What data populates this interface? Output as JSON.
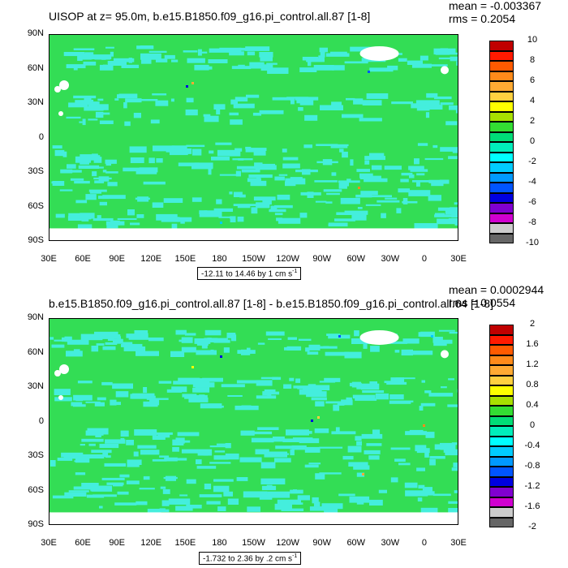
{
  "chart_data": [
    {
      "type": "heatmap",
      "title": "UISOP at z=  95.0m, b.e15.B1850.f09_g16.pi_control.all.87 [1-8]",
      "mean_text": "mean = -0.003367",
      "rms_text": "rms = 0.2054",
      "range_text": "-12.11 to 14.46 by 1 cm s",
      "range_unit_exp": "-1",
      "lat_ticks": [
        "90N",
        "60N",
        "30N",
        "0",
        "30S",
        "60S",
        "90S"
      ],
      "lon_ticks": [
        "30E",
        "60E",
        "90E",
        "120E",
        "150E",
        "180",
        "150W",
        "120W",
        "90W",
        "60W",
        "30W",
        "0",
        "30E"
      ],
      "colorbar_labels": [
        "10",
        "8",
        "6",
        "4",
        "2",
        "0",
        "-2",
        "-4",
        "-6",
        "-8",
        "-10"
      ],
      "colorbar_colors": [
        "#c00000",
        "#ff1a00",
        "#ff5a00",
        "#ff8a1a",
        "#ffaa33",
        "#ffd040",
        "#ffff00",
        "#a8e000",
        "#33dd33",
        "#00dd77",
        "#00eebb",
        "#00ffff",
        "#00ccff",
        "#0099ff",
        "#0055ff",
        "#0000e0",
        "#8000d0",
        "#d000d0",
        "#cccccc",
        "#666666"
      ],
      "dominant_color": "#33dd55",
      "secondary_color": "#44eedd"
    },
    {
      "type": "heatmap",
      "title": "b.e15.B1850.f09_g16.pi_control.all.87 [1-8] - b.e15.B1850.f09_g16.pi_control.all.64 [1-8]",
      "mean_text": "mean = 0.0002944",
      "rms_text": "rms = 0.0554",
      "range_text": "-1.732 to 2.36 by .2 cm s",
      "range_unit_exp": "-1",
      "lat_ticks": [
        "90N",
        "60N",
        "30N",
        "0",
        "30S",
        "60S",
        "90S"
      ],
      "lon_ticks": [
        "30E",
        "60E",
        "90E",
        "120E",
        "150E",
        "180",
        "150W",
        "120W",
        "90W",
        "60W",
        "30W",
        "0",
        "30E"
      ],
      "colorbar_labels": [
        "2",
        "1.6",
        "1.2",
        "0.8",
        "0.4",
        "0",
        "-0.4",
        "-0.8",
        "-1.2",
        "-1.6",
        "-2"
      ],
      "colorbar_colors": [
        "#c00000",
        "#ff1a00",
        "#ff5a00",
        "#ff8a1a",
        "#ffaa33",
        "#ffd040",
        "#ffff00",
        "#a8e000",
        "#33dd33",
        "#00dd77",
        "#00eebb",
        "#00ffff",
        "#00ccff",
        "#0099ff",
        "#0055ff",
        "#0000e0",
        "#8000d0",
        "#d000d0",
        "#cccccc",
        "#666666"
      ],
      "dominant_color": "#33dd55",
      "secondary_color": "#44eedd"
    }
  ]
}
